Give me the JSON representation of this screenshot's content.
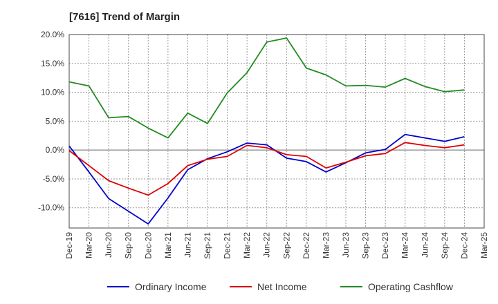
{
  "chart_data": {
    "type": "line",
    "title": "[7616]  Trend of Margin",
    "xlabel": "",
    "ylabel": "",
    "ylim": [
      -13.5,
      20
    ],
    "y_ticks": [
      20,
      15,
      10,
      5,
      0,
      -5,
      -10
    ],
    "y_tick_labels": [
      "20.0%",
      "15.0%",
      "10.0%",
      "5.0%",
      "0.0%",
      "-5.0%",
      "-10.0%"
    ],
    "grid": true,
    "legend_position": "bottom",
    "categories": [
      "Dec-19",
      "Mar-20",
      "Jun-20",
      "Sep-20",
      "Dec-20",
      "Mar-21",
      "Jun-21",
      "Sep-21",
      "Dec-21",
      "Mar-22",
      "Jun-22",
      "Sep-22",
      "Dec-22",
      "Mar-23",
      "Jun-23",
      "Sep-23",
      "Dec-23",
      "Mar-24",
      "Jun-24",
      "Sep-24",
      "Dec-24",
      "Mar-25"
    ],
    "series": [
      {
        "name": "Ordinary Income",
        "color": "#0000cc",
        "values": [
          0.7,
          -3.8,
          -8.4,
          -10.6,
          -12.8,
          -8.3,
          -3.4,
          -1.5,
          -0.3,
          1.2,
          0.9,
          -1.4,
          -2.0,
          -3.8,
          -2.2,
          -0.5,
          0.1,
          2.7,
          2.1,
          1.5,
          2.3,
          null
        ]
      },
      {
        "name": "Net Income",
        "color": "#dd0000",
        "values": [
          -0.1,
          -2.7,
          -5.3,
          -6.6,
          -7.8,
          -5.8,
          -2.7,
          -1.6,
          -1.1,
          0.8,
          0.4,
          -0.8,
          -1.1,
          -3.1,
          -2.1,
          -1.0,
          -0.6,
          1.3,
          0.8,
          0.4,
          0.9,
          null
        ]
      },
      {
        "name": "Operating Cashflow",
        "color": "#228B22",
        "values": [
          11.8,
          11.1,
          5.6,
          5.8,
          3.8,
          2.1,
          6.4,
          4.6,
          9.9,
          13.4,
          18.7,
          19.4,
          14.2,
          13.0,
          11.1,
          11.2,
          10.9,
          12.4,
          11.0,
          10.1,
          10.4,
          null
        ]
      }
    ]
  }
}
